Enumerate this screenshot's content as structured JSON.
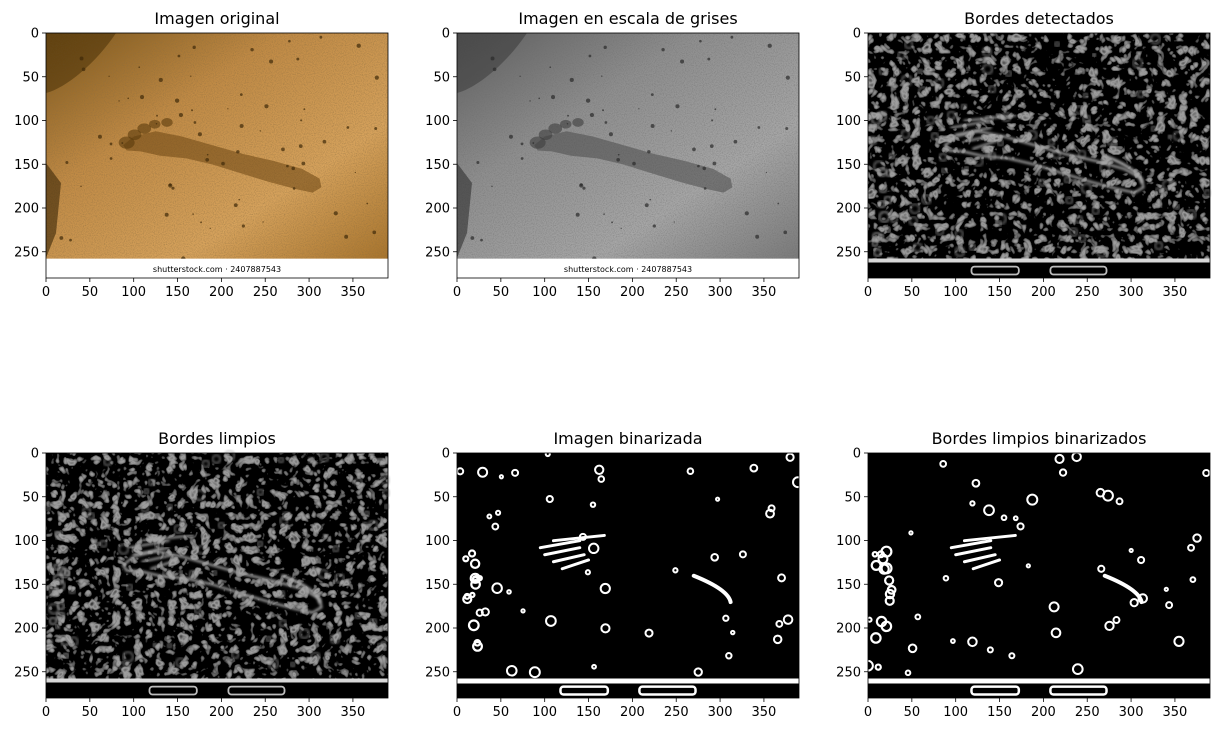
{
  "chart_data": [
    {
      "type": "image",
      "title": "Imagen original",
      "image_kind": "color",
      "x_ticks": [
        0,
        50,
        100,
        150,
        200,
        250,
        300,
        350
      ],
      "y_ticks": [
        0,
        50,
        100,
        150,
        200,
        250
      ],
      "xlim": [
        0,
        390
      ],
      "ylim": [
        280,
        0
      ],
      "image_size": [
        390,
        280
      ],
      "watermark_text": "shutterstock.com · 2407887543"
    },
    {
      "type": "image",
      "title": "Imagen en escala de grises",
      "image_kind": "grayscale",
      "x_ticks": [
        0,
        50,
        100,
        150,
        200,
        250,
        300,
        350
      ],
      "y_ticks": [
        0,
        50,
        100,
        150,
        200,
        250
      ],
      "xlim": [
        0,
        390
      ],
      "ylim": [
        280,
        0
      ],
      "image_size": [
        390,
        280
      ],
      "watermark_text": "shutterstock.com · 2407887543"
    },
    {
      "type": "image",
      "title": "Bordes detectados",
      "image_kind": "edges",
      "x_ticks": [
        0,
        50,
        100,
        150,
        200,
        250,
        300,
        350
      ],
      "y_ticks": [
        0,
        50,
        100,
        150,
        200,
        250
      ],
      "xlim": [
        0,
        390
      ],
      "ylim": [
        280,
        0
      ],
      "image_size": [
        390,
        280
      ]
    },
    {
      "type": "image",
      "title": "Bordes limpios",
      "image_kind": "edges",
      "x_ticks": [
        0,
        50,
        100,
        150,
        200,
        250,
        300,
        350
      ],
      "y_ticks": [
        0,
        50,
        100,
        150,
        200,
        250
      ],
      "xlim": [
        0,
        390
      ],
      "ylim": [
        280,
        0
      ],
      "image_size": [
        390,
        280
      ]
    },
    {
      "type": "image",
      "title": "Imagen binarizada",
      "image_kind": "binary",
      "x_ticks": [
        0,
        50,
        100,
        150,
        200,
        250,
        300,
        350
      ],
      "y_ticks": [
        0,
        50,
        100,
        150,
        200,
        250
      ],
      "xlim": [
        0,
        390
      ],
      "ylim": [
        280,
        0
      ],
      "image_size": [
        390,
        280
      ]
    },
    {
      "type": "image",
      "title": "Bordes limpios binarizados",
      "image_kind": "binary",
      "x_ticks": [
        0,
        50,
        100,
        150,
        200,
        250,
        300,
        350
      ],
      "y_ticks": [
        0,
        50,
        100,
        150,
        200,
        250
      ],
      "xlim": [
        0,
        390
      ],
      "ylim": [
        280,
        0
      ],
      "image_size": [
        390,
        280
      ]
    }
  ],
  "colors": {
    "sand_dark": "#8a5a1c",
    "sand_mid": "#b8843e",
    "sand_light": "#d9a45a",
    "gray_mid": "#8c8c8c",
    "edge_line": "#9a9a9a",
    "binary_white": "#ffffff",
    "background_black": "#000000"
  }
}
